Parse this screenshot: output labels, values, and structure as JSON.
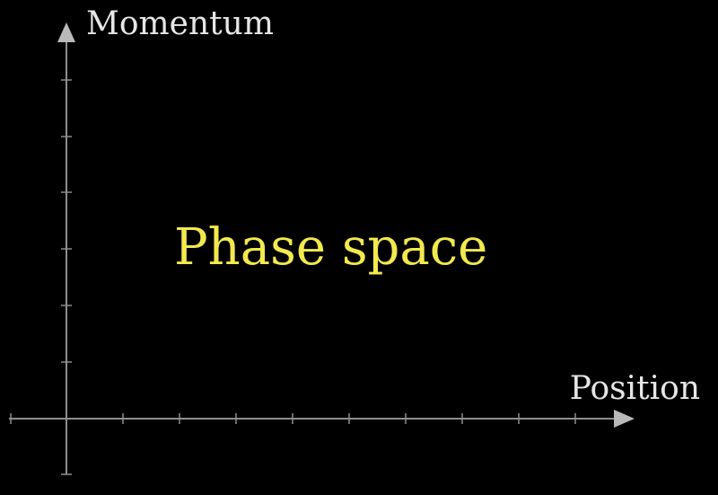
{
  "diagram": {
    "y_axis_label": "Momentum",
    "x_axis_label": "Position",
    "center_label": "Phase space",
    "colors": {
      "background": "#000000",
      "axis": "#8e8e8e",
      "arrowhead": "#b9b9b9",
      "axis_label": "#e6e6e6",
      "center_label": "#f2e94e"
    }
  }
}
